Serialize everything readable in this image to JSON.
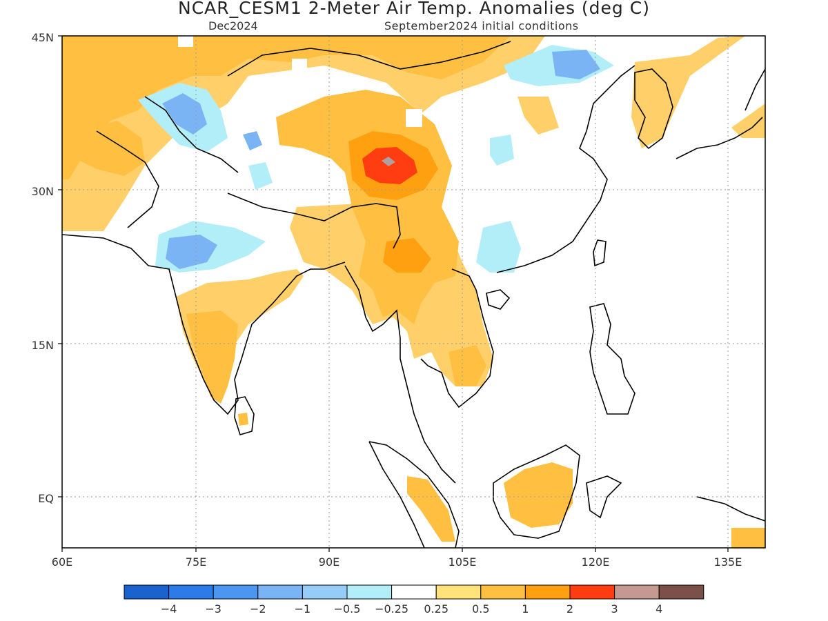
{
  "title": "NCAR_CESM1 2-Meter Air Temp. Anomalies (deg C)",
  "subtitle_left": "Dec2024",
  "subtitle_right": "September2024 initial conditions",
  "map": {
    "lon_range": [
      60,
      140
    ],
    "lat_range": [
      -6,
      45
    ],
    "lon_ticks": [
      "60E",
      "75E",
      "90E",
      "105E",
      "120E",
      "135E"
    ],
    "lat_ticks": [
      "45N",
      "30N",
      "15N",
      "EQ"
    ]
  },
  "colorbar": {
    "colors": [
      "#1a63cf",
      "#2b7be8",
      "#4a96f0",
      "#7ab4f4",
      "#96cdf8",
      "#b2eef8",
      "#ffffff",
      "#ffe27a",
      "#ffbf40",
      "#ffa010",
      "#ff3d10",
      "#c49a90",
      "#7a5048"
    ],
    "labels": [
      "-4",
      "-3",
      "-2",
      "-1",
      "-0.5",
      "-0.25",
      "0.25",
      "0.5",
      "1",
      "2",
      "3",
      "4"
    ]
  },
  "anomaly_regions": [
    {
      "name": "north-belt-warm",
      "level": 1
    },
    {
      "name": "pakistan-iran-warm",
      "level": 0.5
    },
    {
      "name": "tibet-warm",
      "level": 1
    },
    {
      "name": "tibet-core-warm",
      "level": 2
    },
    {
      "name": "tibet-peak-warm",
      "level": 3
    },
    {
      "name": "myanmar-warm",
      "level": 1
    },
    {
      "name": "south-india-warm",
      "level": 1
    },
    {
      "name": "central-india-warm",
      "level": 0.5
    },
    {
      "name": "borneo-warm",
      "level": 1
    },
    {
      "name": "sumatra-warm",
      "level": 1
    },
    {
      "name": "korea-japan-warm",
      "level": 0.5
    },
    {
      "name": "north-india-cool",
      "level": -1
    },
    {
      "name": "karakoram-cool",
      "level": -1
    },
    {
      "name": "mongolia-cool",
      "level": -1
    },
    {
      "name": "south-china-cool",
      "level": -0.5
    }
  ]
}
